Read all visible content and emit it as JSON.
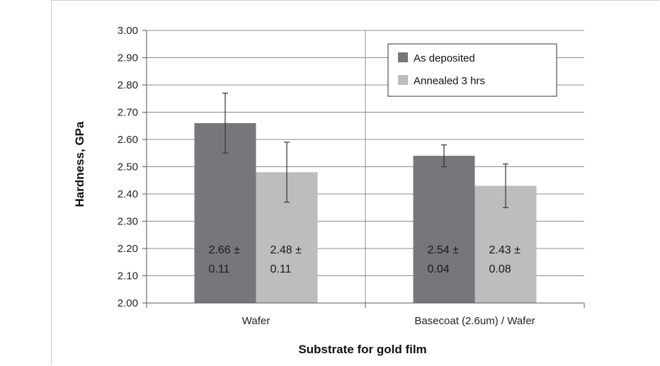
{
  "chart_data": {
    "type": "bar",
    "title": "",
    "xlabel": "Substrate for gold film",
    "ylabel": "Hardness, GPa",
    "ylim": [
      2.0,
      3.0
    ],
    "ytick_step": 0.1,
    "ytick_labels": [
      "2.00",
      "2.10",
      "2.20",
      "2.30",
      "2.40",
      "2.50",
      "2.60",
      "2.70",
      "2.80",
      "2.90",
      "3.00"
    ],
    "grid": true,
    "legend_position": "top-right",
    "categories": [
      "Wafer",
      "Basecoat (2.6um) / Wafer"
    ],
    "series": [
      {
        "name": "As deposited",
        "color": "#77777b",
        "values": [
          2.66,
          2.54
        ],
        "errors": [
          0.11,
          0.04
        ],
        "labels": [
          [
            "2.66 ±",
            "0.11"
          ],
          [
            "2.54 ±",
            "0.04"
          ]
        ]
      },
      {
        "name": "Annealed 3 hrs",
        "color": "#bcbdbf",
        "values": [
          2.48,
          2.43
        ],
        "errors": [
          0.11,
          0.08
        ],
        "labels": [
          [
            "2.48 ±",
            "0.11"
          ],
          [
            "2.43 ±",
            "0.08"
          ]
        ]
      }
    ]
  }
}
